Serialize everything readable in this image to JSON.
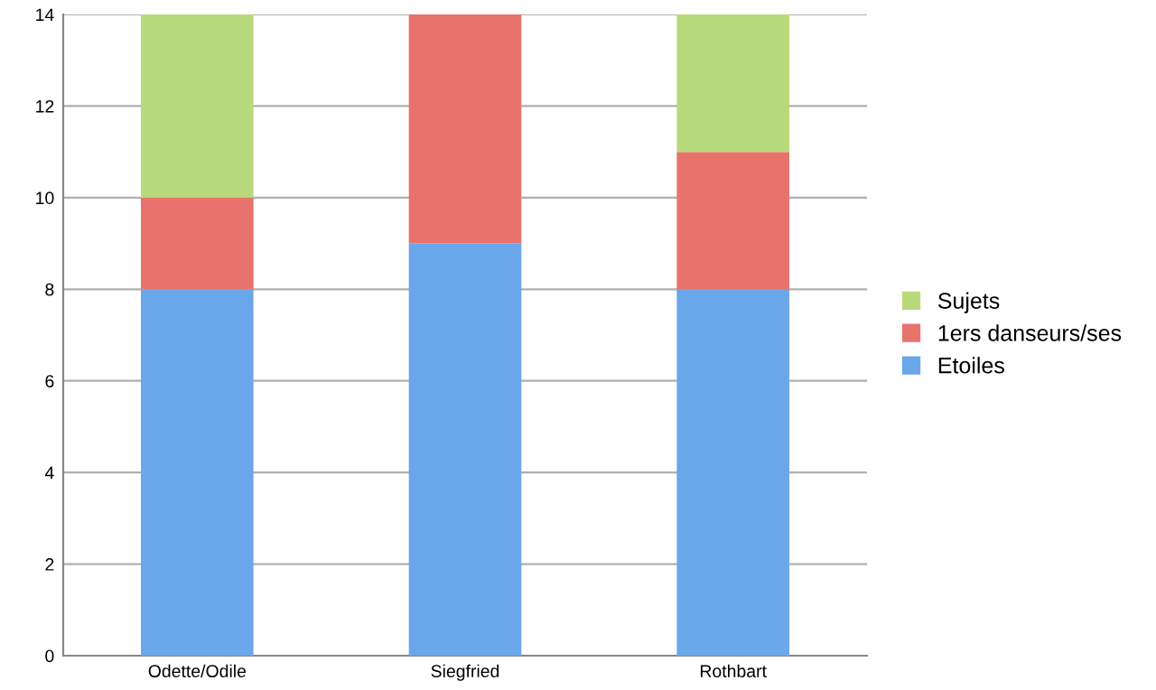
{
  "chart_data": {
    "type": "bar",
    "stacked": true,
    "categories": [
      "Odette/Odile",
      "Siegfried",
      "Rothbart"
    ],
    "series": [
      {
        "name": "Etoiles",
        "color": "#6aa6ea",
        "values": [
          8,
          9,
          8
        ]
      },
      {
        "name": "1ers danseurs/ses",
        "color": "#e8736c",
        "values": [
          2,
          5,
          3
        ]
      },
      {
        "name": "Sujets",
        "color": "#b9da7c",
        "values": [
          4,
          0,
          3
        ]
      }
    ],
    "ylim": [
      0,
      14
    ],
    "yticks": [
      0,
      2,
      4,
      6,
      8,
      10,
      12,
      14
    ],
    "grid": "y",
    "legend": "right"
  }
}
